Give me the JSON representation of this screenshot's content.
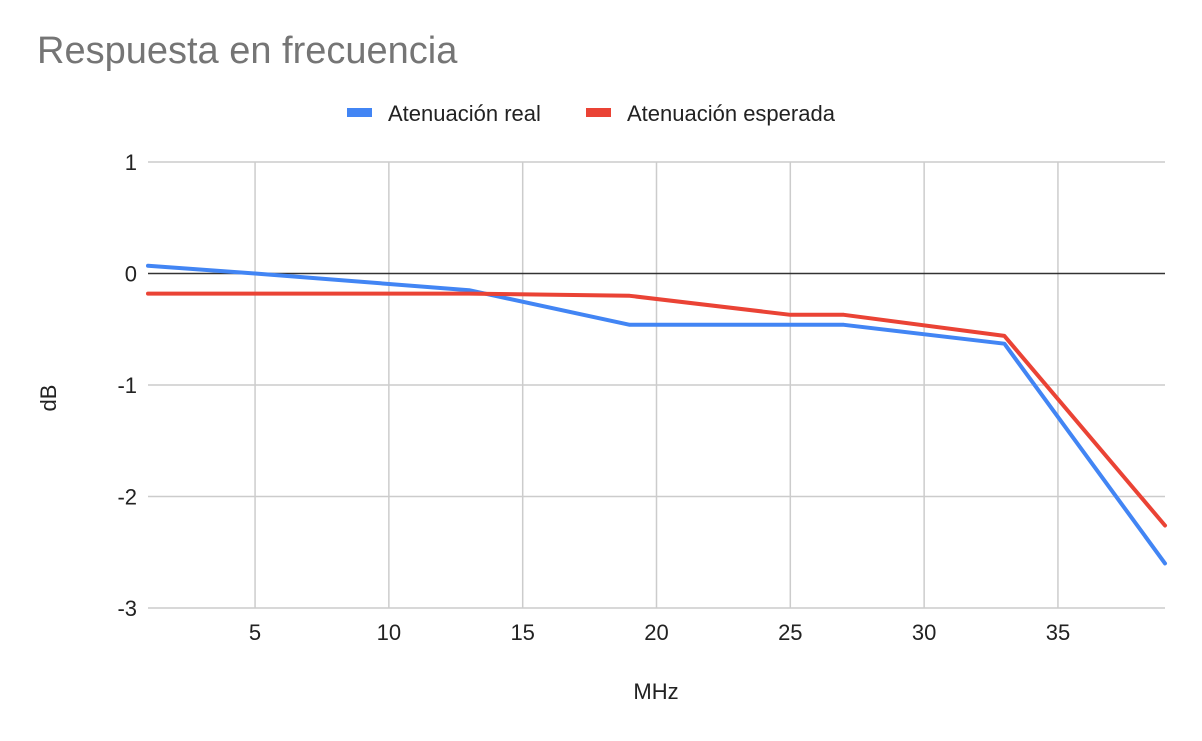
{
  "chart_data": {
    "type": "line",
    "title": "Respuesta en frecuencia",
    "xlabel": "MHz",
    "ylabel": "dB",
    "xlim": [
      1,
      39
    ],
    "ylim": [
      -3,
      1
    ],
    "xticks": [
      5,
      10,
      15,
      20,
      25,
      30,
      35
    ],
    "yticks": [
      1,
      0,
      -1,
      -2,
      -3
    ],
    "grid": true,
    "legend_position": "top",
    "series": [
      {
        "name": "Atenuación real",
        "color": "#4285f4",
        "points": [
          [
            1,
            0.07
          ],
          [
            5,
            0.0
          ],
          [
            13,
            -0.15
          ],
          [
            19,
            -0.46
          ],
          [
            27,
            -0.46
          ],
          [
            33,
            -0.63
          ],
          [
            39,
            -2.6
          ]
        ]
      },
      {
        "name": "Atenuación esperada",
        "color": "#ea4335",
        "points": [
          [
            1,
            -0.18
          ],
          [
            13,
            -0.18
          ],
          [
            19,
            -0.2
          ],
          [
            25,
            -0.37
          ],
          [
            27,
            -0.37
          ],
          [
            33,
            -0.56
          ],
          [
            39,
            -2.26
          ]
        ]
      }
    ]
  }
}
